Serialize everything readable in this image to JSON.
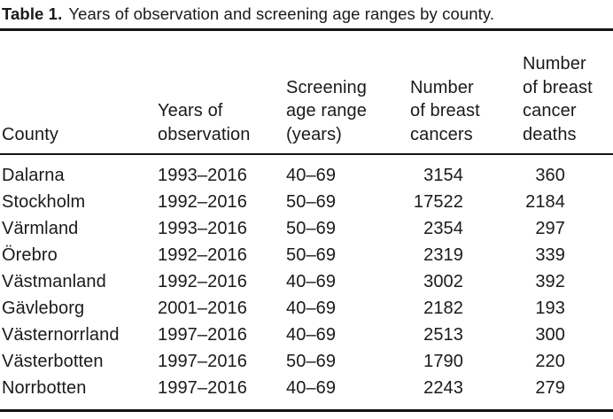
{
  "caption": {
    "label": "Table 1.",
    "text": "Years of observation and screening age ranges by county."
  },
  "table": {
    "columns": [
      {
        "key": "county",
        "lines": [
          "County"
        ]
      },
      {
        "key": "years",
        "lines": [
          "Years of",
          "observation"
        ]
      },
      {
        "key": "age",
        "lines": [
          "Screening",
          "age range",
          "(years)"
        ]
      },
      {
        "key": "cancers",
        "lines": [
          "Number",
          "of breast",
          "cancers"
        ]
      },
      {
        "key": "deaths",
        "lines": [
          "Number",
          "of breast",
          "cancer",
          "deaths"
        ]
      }
    ],
    "rows": [
      {
        "county": "Dalarna",
        "years": "1993–2016",
        "age": "40–69",
        "cancers": "3154",
        "deaths": "360"
      },
      {
        "county": "Stockholm",
        "years": "1992–2016",
        "age": "50–69",
        "cancers": "17522",
        "deaths": "2184"
      },
      {
        "county": "Värmland",
        "years": "1993–2016",
        "age": "50–69",
        "cancers": "2354",
        "deaths": "297"
      },
      {
        "county": "Örebro",
        "years": "1992–2016",
        "age": "50–69",
        "cancers": "2319",
        "deaths": "339"
      },
      {
        "county": "Västmanland",
        "years": "1992–2016",
        "age": "40–69",
        "cancers": "3002",
        "deaths": "392"
      },
      {
        "county": "Gävleborg",
        "years": "2001–2016",
        "age": "40–69",
        "cancers": "2182",
        "deaths": "193"
      },
      {
        "county": "Västernorrland",
        "years": "1997–2016",
        "age": "40–69",
        "cancers": "2513",
        "deaths": "300"
      },
      {
        "county": "Västerbotten",
        "years": "1997–2016",
        "age": "50–69",
        "cancers": "1790",
        "deaths": "220"
      },
      {
        "county": "Norrbotten",
        "years": "1997–2016",
        "age": "40–69",
        "cancers": "2243",
        "deaths": "279"
      }
    ],
    "colors": {
      "text": "#1a1a1a",
      "rule": "#141414",
      "background": "#ffffff"
    }
  }
}
